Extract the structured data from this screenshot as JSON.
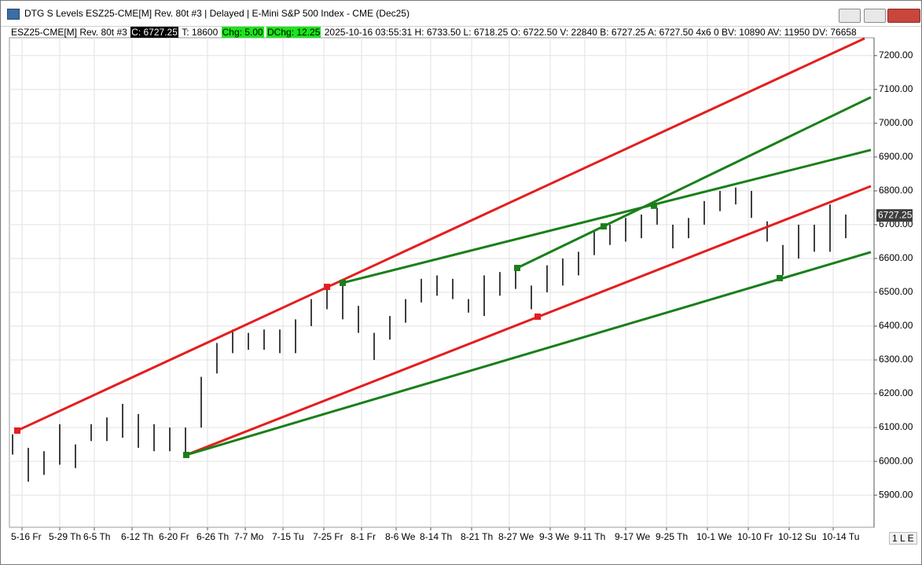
{
  "window": {
    "title": "DTG S Levels ESZ25-CME[M]  Rev. 80t #3 | Delayed | E-Mini S&P 500 Index - CME (Dec25)",
    "status": "1 L E"
  },
  "header": {
    "symbol": "ESZ25-CME[M]  Rev. 80t #3",
    "close": "C: 6727.25",
    "ticks": "T: 18600",
    "change": "Chg: 5.00",
    "day_change": "DChg: 12.25",
    "details": "2025-10-16 03:55:31 H: 6733.50 L: 6718.25 O: 6722.50 V: 22840 B: 6727.25 A: 6727.50 4x6 0 BV: 10890 AV: 11950 DV: 76658"
  },
  "chart_data": {
    "type": "range_bar",
    "bar_color": "#000000",
    "grid": true,
    "x": [
      1,
      6,
      11,
      16,
      21,
      26,
      31,
      36,
      41,
      46,
      51,
      56,
      61,
      66,
      71,
      76,
      81,
      86,
      91,
      96,
      101,
      106,
      111,
      116,
      121,
      126,
      131,
      136,
      141,
      146,
      151,
      156,
      161,
      166,
      171,
      176,
      181,
      186,
      191,
      196,
      201,
      206,
      211,
      216,
      221,
      226,
      231,
      236,
      241,
      246,
      251,
      256,
      261,
      266
    ],
    "high": [
      6080,
      6040,
      6030,
      6110,
      6050,
      6110,
      6130,
      6170,
      6140,
      6110,
      6100,
      6100,
      6250,
      6350,
      6390,
      6380,
      6390,
      6390,
      6420,
      6480,
      6520,
      6530,
      6460,
      6380,
      6430,
      6480,
      6540,
      6550,
      6540,
      6480,
      6550,
      6560,
      6570,
      6520,
      6580,
      6600,
      6620,
      6680,
      6700,
      6720,
      6730,
      6750,
      6700,
      6720,
      6770,
      6800,
      6810,
      6800,
      6710,
      6640,
      6700,
      6700,
      6760,
      6730
    ],
    "low": [
      6020,
      5940,
      5960,
      5990,
      5980,
      6060,
      6060,
      6070,
      6040,
      6030,
      6030,
      6020,
      6100,
      6260,
      6320,
      6330,
      6330,
      6320,
      6320,
      6400,
      6450,
      6420,
      6380,
      6300,
      6360,
      6410,
      6470,
      6490,
      6480,
      6440,
      6430,
      6490,
      6510,
      6450,
      6500,
      6520,
      6550,
      6610,
      6640,
      6650,
      6660,
      6700,
      6630,
      6660,
      6700,
      6740,
      6760,
      6720,
      6650,
      6550,
      6600,
      6620,
      6620,
      6660
    ],
    "xlim": [
      0,
      275
    ],
    "xticks": [
      {
        "value": 4,
        "label": "5-16 Fr"
      },
      {
        "value": 16,
        "label": "5-29 Th"
      },
      {
        "value": 27,
        "label": "6-5 Th"
      },
      {
        "value": 39,
        "label": "6-12 Th"
      },
      {
        "value": 51,
        "label": "6-20 Fr"
      },
      {
        "value": 63,
        "label": "6-26 Th"
      },
      {
        "value": 75,
        "label": "7-7 Mo"
      },
      {
        "value": 87,
        "label": "7-15 Tu"
      },
      {
        "value": 100,
        "label": "7-25 Fr"
      },
      {
        "value": 112,
        "label": "8-1 Fr"
      },
      {
        "value": 123,
        "label": "8-6 We"
      },
      {
        "value": 134,
        "label": "8-14 Th"
      },
      {
        "value": 147,
        "label": "8-21 Th"
      },
      {
        "value": 159,
        "label": "8-27 We"
      },
      {
        "value": 172,
        "label": "9-3 We"
      },
      {
        "value": 183,
        "label": "9-11 Th"
      },
      {
        "value": 196,
        "label": "9-17 We"
      },
      {
        "value": 209,
        "label": "9-25 Th"
      },
      {
        "value": 222,
        "label": "10-1 We"
      },
      {
        "value": 235,
        "label": "10-10 Fr"
      },
      {
        "value": 248,
        "label": "10-12 Su"
      },
      {
        "value": 262,
        "label": "10-14 Tu"
      }
    ],
    "ylim": [
      5805,
      7253
    ],
    "yticks": [
      {
        "value": 5900,
        "label": "5900.00"
      },
      {
        "value": 6000,
        "label": "6000.00"
      },
      {
        "value": 6100,
        "label": "6100.00"
      },
      {
        "value": 6200,
        "label": "6200.00"
      },
      {
        "value": 6300,
        "label": "6300.00"
      },
      {
        "value": 6400,
        "label": "6400.00"
      },
      {
        "value": 6500,
        "label": "6500.00"
      },
      {
        "value": 6600,
        "label": "6600.00"
      },
      {
        "value": 6700,
        "label": "6700.00"
      },
      {
        "value": 6800,
        "label": "6800.00"
      },
      {
        "value": 6900,
        "label": "6900.00"
      },
      {
        "value": 7000,
        "label": "7000.00"
      },
      {
        "value": 7100,
        "label": "7100.00"
      },
      {
        "value": 7200,
        "label": "7200.00"
      }
    ],
    "last_price": 6727.25,
    "trendlines": [
      {
        "color": "#e41e1e",
        "x": [
          2.5,
          272
        ],
        "values": [
          6091,
          7251
        ]
      },
      {
        "color": "#e41e1e",
        "x": [
          56.25,
          274
        ],
        "values": [
          6019,
          6814
        ]
      },
      {
        "color": "#1a7f1a",
        "x": [
          56.25,
          274
        ],
        "values": [
          6019,
          6619
        ]
      },
      {
        "color": "#1a7f1a",
        "x": [
          106,
          274
        ],
        "values": [
          6528,
          6921
        ]
      },
      {
        "color": "#1a7f1a",
        "x": [
          161.5,
          274
        ],
        "values": [
          6572,
          7077
        ]
      }
    ],
    "markers": [
      {
        "color": "#e41e1e",
        "x": 2.5,
        "value": 6091
      },
      {
        "color": "#e41e1e",
        "x": 101,
        "value": 6516
      },
      {
        "color": "#e41e1e",
        "x": 168,
        "value": 6428
      },
      {
        "color": "#1a7f1a",
        "x": 56.25,
        "value": 6019
      },
      {
        "color": "#1a7f1a",
        "x": 106,
        "value": 6528
      },
      {
        "color": "#1a7f1a",
        "x": 161.5,
        "value": 6572
      },
      {
        "color": "#1a7f1a",
        "x": 189,
        "value": 6695
      },
      {
        "color": "#1a7f1a",
        "x": 205,
        "value": 6756
      },
      {
        "color": "#1a7f1a",
        "x": 245,
        "value": 6542
      }
    ]
  }
}
